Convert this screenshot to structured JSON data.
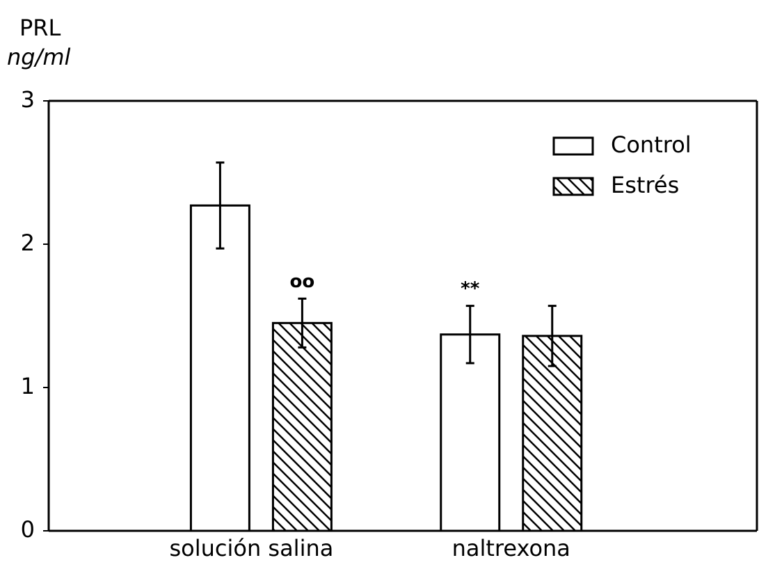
{
  "chart_data": {
    "type": "bar",
    "ylabel": "PRL",
    "yunits": "ng/ml",
    "categories": [
      "solución salina",
      "naltrexona"
    ],
    "series": [
      {
        "name": "Control",
        "color": "#000000",
        "hatch": false,
        "values": [
          2.27,
          1.37
        ],
        "errors": [
          0.3,
          0.2
        ],
        "annotations": [
          null,
          "**"
        ]
      },
      {
        "name": "Estrés",
        "color": "#000000",
        "hatch": true,
        "values": [
          1.45,
          1.36
        ],
        "errors": [
          0.17,
          0.21
        ],
        "annotations": [
          "oo",
          null
        ]
      }
    ],
    "ylim": [
      0,
      3
    ],
    "yticks": [
      0,
      1,
      2,
      3
    ],
    "legend": "upper right"
  }
}
